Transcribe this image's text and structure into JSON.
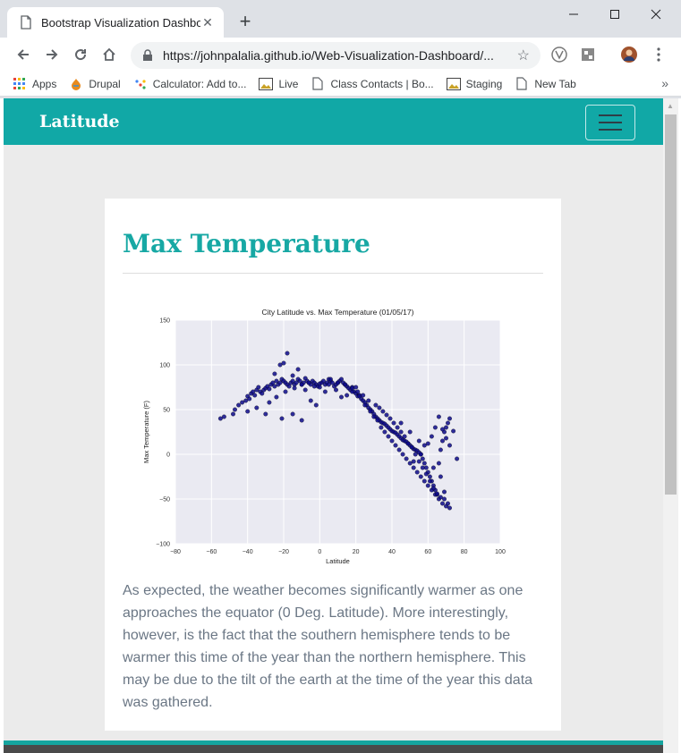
{
  "browser": {
    "tab_title": "Bootstrap Visualization Dashboar",
    "url": "https://johnpalalia.github.io/Web-Visualization-Dashboard/...",
    "bookmarks": [
      {
        "label": "Apps",
        "icon": "apps-grid-icon"
      },
      {
        "label": "Drupal",
        "icon": "drupal-icon"
      },
      {
        "label": "Calculator: Add to...",
        "icon": "calculator-icon"
      },
      {
        "label": "Live",
        "icon": "image-icon"
      },
      {
        "label": "Class Contacts | Bo...",
        "icon": "page-icon"
      },
      {
        "label": "Staging",
        "icon": "image-icon"
      },
      {
        "label": "New Tab",
        "icon": "page-icon"
      }
    ],
    "more_bookmarks": "»"
  },
  "site": {
    "brand": "Latitude",
    "accent": "#11a8a6"
  },
  "card": {
    "heading": "Max Temperature",
    "description": "As expected, the weather becomes significantly warmer as one approaches the equator (0 Deg. Latitude). More interestingly, however, is the fact that the southern hemisphere tends to be warmer this time of the year than the northern hemisphere. This may be due to the tilt of the earth at the time of the year this data was gathered."
  },
  "chart_data": {
    "type": "scatter",
    "title": "City Latitude vs. Max Temperature (01/05/17)",
    "xlabel": "Latitude",
    "ylabel": "Max Temperature (F)",
    "xlim": [
      -80,
      100
    ],
    "ylim": [
      -100,
      150
    ],
    "xticks": [
      -80,
      -60,
      -40,
      -20,
      0,
      20,
      40,
      60,
      80,
      100
    ],
    "yticks": [
      -100,
      -50,
      0,
      50,
      100,
      150
    ],
    "ytick_labels": [
      "−100",
      "−50",
      "0",
      "50",
      "100",
      "150"
    ],
    "xtick_labels": [
      "−80",
      "−60",
      "−40",
      "−20",
      "0",
      "20",
      "40",
      "60",
      "80",
      "100"
    ],
    "grid": true,
    "point_color": "#0d0a8a",
    "x": [
      -55,
      -53,
      -48,
      -47,
      -45,
      -43,
      -41,
      -40,
      -39,
      -38,
      -37,
      -36,
      -35,
      -34,
      -33,
      -32,
      -31,
      -30,
      -29,
      -28,
      -27,
      -26,
      -25,
      -24,
      -23,
      -22,
      -21,
      -20,
      -19,
      -18,
      -17,
      -16,
      -15,
      -14,
      -13,
      -12,
      -11,
      -10,
      -9,
      -8,
      -7,
      -6,
      -5,
      -4,
      -3,
      -2,
      -1,
      0,
      1,
      2,
      3,
      4,
      5,
      6,
      7,
      8,
      9,
      10,
      11,
      12,
      13,
      14,
      15,
      16,
      17,
      18,
      19,
      20,
      21,
      22,
      23,
      24,
      25,
      26,
      27,
      28,
      29,
      30,
      31,
      32,
      33,
      34,
      35,
      36,
      37,
      38,
      39,
      40,
      41,
      42,
      43,
      44,
      45,
      46,
      47,
      48,
      49,
      50,
      51,
      52,
      53,
      54,
      55,
      56,
      57,
      58,
      59,
      60,
      61,
      62,
      63,
      64,
      65,
      66,
      67,
      68,
      69,
      70,
      71,
      72,
      -30,
      -25,
      -22,
      -20,
      -18,
      -15,
      -12,
      -8,
      -5,
      -2,
      3,
      6,
      9,
      12,
      15,
      18,
      20,
      22,
      25,
      28,
      30,
      32,
      34,
      36,
      38,
      40,
      42,
      44,
      46,
      48,
      50,
      52,
      54,
      56,
      58,
      60,
      62,
      64,
      66,
      68,
      70,
      72,
      -40,
      -35,
      -28,
      -24,
      -19,
      -14,
      -10,
      -6,
      -3,
      0,
      5,
      10,
      14,
      18,
      21,
      24,
      27,
      31,
      33,
      35,
      37,
      39,
      41,
      43,
      45,
      47,
      49,
      51,
      53,
      55,
      57,
      59,
      61,
      63,
      65,
      67,
      69,
      71,
      -21,
      -15,
      -10,
      45,
      50,
      55,
      58,
      62,
      64,
      66,
      68,
      70,
      72,
      74,
      76,
      52,
      56,
      60,
      63,
      67,
      69
    ],
    "y": [
      40,
      42,
      45,
      50,
      55,
      58,
      60,
      65,
      62,
      68,
      70,
      66,
      72,
      75,
      70,
      68,
      72,
      74,
      76,
      73,
      78,
      80,
      76,
      82,
      78,
      80,
      84,
      82,
      80,
      78,
      76,
      80,
      82,
      78,
      80,
      84,
      82,
      78,
      80,
      85,
      82,
      80,
      78,
      82,
      80,
      78,
      76,
      79,
      80,
      82,
      78,
      80,
      84,
      82,
      80,
      76,
      78,
      80,
      82,
      84,
      80,
      78,
      76,
      74,
      72,
      75,
      70,
      68,
      65,
      66,
      62,
      60,
      58,
      55,
      52,
      50,
      48,
      45,
      42,
      40,
      38,
      36,
      35,
      34,
      32,
      30,
      28,
      26,
      25,
      24,
      22,
      20,
      18,
      16,
      15,
      14,
      12,
      10,
      8,
      6,
      5,
      4,
      2,
      0,
      -5,
      -10,
      -15,
      -20,
      -25,
      -30,
      -35,
      -40,
      -45,
      -10,
      5,
      15,
      25,
      30,
      35,
      40,
      45,
      90,
      100,
      102,
      113,
      88,
      95,
      72,
      60,
      55,
      70,
      84,
      72,
      64,
      66,
      70,
      75,
      65,
      55,
      48,
      42,
      38,
      30,
      25,
      20,
      15,
      10,
      5,
      0,
      -5,
      -10,
      -15,
      -20,
      -25,
      -30,
      -35,
      -40,
      -45,
      -50,
      -55,
      -58,
      -60,
      48,
      52,
      58,
      64,
      70,
      74,
      78,
      80,
      76,
      75,
      78,
      80,
      78,
      74,
      70,
      66,
      60,
      55,
      52,
      48,
      44,
      40,
      35,
      30,
      25,
      20,
      12,
      8,
      0,
      -8,
      -15,
      -22,
      -30,
      -38,
      -44,
      -48,
      -50,
      -55,
      40,
      45,
      38,
      35,
      25,
      15,
      10,
      20,
      30,
      42,
      28,
      18,
      10,
      26,
      -5,
      -8,
      0,
      12,
      -15,
      -25,
      -42
    ]
  }
}
